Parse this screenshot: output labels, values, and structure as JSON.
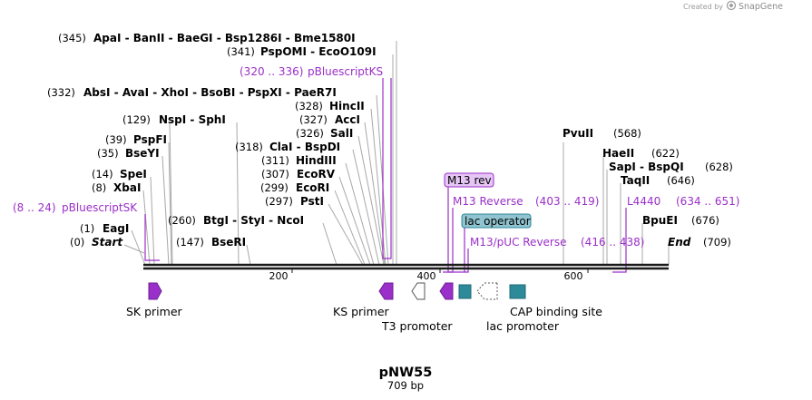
{
  "credit": {
    "created_by": "Created by",
    "brand": "SnapGene"
  },
  "plasmid": {
    "name": "pNW55",
    "size": "709 bp"
  },
  "ruler": {
    "ticks": [
      "200",
      "400",
      "600"
    ]
  },
  "enzymes": [
    {
      "num": "(345)",
      "names": "ApaI  -  BanII  -  BaeGI  -  Bsp1286I  -  Bme1580I"
    },
    {
      "num": "(341)",
      "names": "PspOMI  -  EcoO109I"
    },
    {
      "num": "(332)",
      "names": "AbsI  -  AvaI  -  XhoI  -  BsoBI  -  PspXI  -  PaeR7I"
    },
    {
      "num": "(328)",
      "names": "HincII"
    },
    {
      "num": "(327)",
      "names": "AccI"
    },
    {
      "num": "(129)",
      "names": "NspI  -  SphI"
    },
    {
      "num": "(326)",
      "names": "SalI"
    },
    {
      "num": "(318)",
      "names": "ClaI  -  BspDI"
    },
    {
      "num": "(39)",
      "names": "PspFI"
    },
    {
      "num": "(311)",
      "names": "HindIII"
    },
    {
      "num": "(35)",
      "names": "BseYI"
    },
    {
      "num": "(307)",
      "names": "EcoRV"
    },
    {
      "num": "(14)",
      "names": "SpeI"
    },
    {
      "num": "(299)",
      "names": "EcoRI"
    },
    {
      "num": "(8)",
      "names": "XbaI"
    },
    {
      "num": "(297)",
      "names": "PstI"
    },
    {
      "num": "(260)",
      "names": "BtgI  -  StyI  -  NcoI"
    },
    {
      "num": "(1)",
      "names": "EagI"
    },
    {
      "num": "(147)",
      "names": "BseRI"
    },
    {
      "num": "(0)",
      "names": "Start"
    },
    {
      "num": "(568)",
      "names": "PvuII"
    },
    {
      "num": "(622)",
      "names": "HaeII"
    },
    {
      "num": "(628)",
      "names": "SapI  -  BspQI"
    },
    {
      "num": "(646)",
      "names": "TaqII"
    },
    {
      "num": "(676)",
      "names": "BpuEI"
    },
    {
      "num": "(709)",
      "names": "End"
    }
  ],
  "primer_sites": [
    {
      "name": "pBluescriptKS",
      "range": "(320 .. 336)"
    },
    {
      "name": "pBluescriptSK",
      "range": "(8 .. 24)"
    },
    {
      "name": "M13 Reverse",
      "range": "(403 .. 419)"
    },
    {
      "name": "M13/pUC Reverse",
      "range": "(416 .. 438)"
    },
    {
      "name": "L4440",
      "range": "(634 .. 651)"
    }
  ],
  "boxed_labels": {
    "m13_rev": "M13 rev",
    "lac_operator": "lac operator"
  },
  "features": {
    "sk_primer": "SK primer",
    "ks_primer": "KS primer",
    "t3_promoter": "T3 promoter",
    "lac_promoter": "lac promoter",
    "cap_site": "CAP binding site"
  },
  "colors": {
    "primer": "#9a2fc9",
    "primer_box": "#e6c6f5",
    "operator_box": "#8fc4d0",
    "cap": "#2d8a99",
    "backbone": "#1a1a1a",
    "leader": "#a8a8a8"
  }
}
